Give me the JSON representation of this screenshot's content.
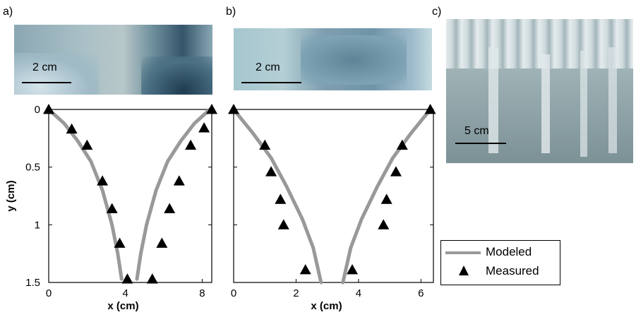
{
  "panels": {
    "a": "a)",
    "b": "b)",
    "c": "c)"
  },
  "photos": {
    "a_scale": "2 cm",
    "b_scale": "2 cm",
    "c_scale": "5 cm"
  },
  "legend": {
    "modeled": "Modeled",
    "measured": "Measured"
  },
  "colors": {
    "modeled": "#999999",
    "measured": "#000000"
  },
  "chart_data": [
    {
      "type": "scatter",
      "panel": "a",
      "xlabel": "x (cm)",
      "ylabel": "y (cm)",
      "xlim": [
        0,
        8.5
      ],
      "ylim": [
        1.5,
        0
      ],
      "xticks": [
        "0",
        "4",
        "8"
      ],
      "yticks": [
        "0",
        "0.5",
        "1",
        "1.5"
      ],
      "series": [
        {
          "name": "Modeled",
          "left": [
            [
              0,
              0
            ],
            [
              0.8,
              0.12
            ],
            [
              1.5,
              0.27
            ],
            [
              2.2,
              0.45
            ],
            [
              2.8,
              0.7
            ],
            [
              3.3,
              1.0
            ],
            [
              3.6,
              1.25
            ],
            [
              3.8,
              1.47
            ]
          ],
          "right": [
            [
              8.4,
              0
            ],
            [
              7.6,
              0.12
            ],
            [
              6.9,
              0.27
            ],
            [
              6.2,
              0.45
            ],
            [
              5.6,
              0.7
            ],
            [
              5.1,
              1.0
            ],
            [
              4.8,
              1.25
            ],
            [
              4.6,
              1.47
            ]
          ]
        },
        {
          "name": "Measured",
          "points": [
            [
              0,
              0
            ],
            [
              1.2,
              0.17
            ],
            [
              2.0,
              0.31
            ],
            [
              2.8,
              0.62
            ],
            [
              3.3,
              0.86
            ],
            [
              3.7,
              1.16
            ],
            [
              4.1,
              1.47
            ],
            [
              8.5,
              0
            ],
            [
              8.1,
              0.16
            ],
            [
              7.4,
              0.31
            ],
            [
              6.8,
              0.62
            ],
            [
              6.3,
              0.86
            ],
            [
              5.9,
              1.16
            ],
            [
              5.4,
              1.47
            ]
          ]
        }
      ]
    },
    {
      "type": "scatter",
      "panel": "b",
      "xlabel": "x (cm)",
      "ylabel": "",
      "xlim": [
        0,
        6.4
      ],
      "ylim": [
        1.5,
        0
      ],
      "xticks": [
        "0",
        "2",
        "4",
        "6"
      ],
      "yticks": [],
      "series": [
        {
          "name": "Modeled",
          "left": [
            [
              0,
              0
            ],
            [
              0.6,
              0.2
            ],
            [
              1.2,
              0.42
            ],
            [
              1.7,
              0.67
            ],
            [
              2.2,
              0.95
            ],
            [
              2.55,
              1.2
            ],
            [
              2.8,
              1.5
            ]
          ],
          "right": [
            [
              6.3,
              0
            ],
            [
              5.7,
              0.2
            ],
            [
              5.1,
              0.42
            ],
            [
              4.6,
              0.67
            ],
            [
              4.1,
              0.95
            ],
            [
              3.75,
              1.2
            ],
            [
              3.5,
              1.5
            ]
          ]
        },
        {
          "name": "Measured",
          "points": [
            [
              0,
              0
            ],
            [
              1.0,
              0.31
            ],
            [
              1.2,
              0.54
            ],
            [
              1.5,
              0.78
            ],
            [
              1.6,
              1.0
            ],
            [
              2.3,
              1.39
            ],
            [
              6.3,
              0
            ],
            [
              5.4,
              0.31
            ],
            [
              5.2,
              0.54
            ],
            [
              4.9,
              0.78
            ],
            [
              4.8,
              1.0
            ],
            [
              3.8,
              1.39
            ]
          ]
        }
      ]
    }
  ]
}
